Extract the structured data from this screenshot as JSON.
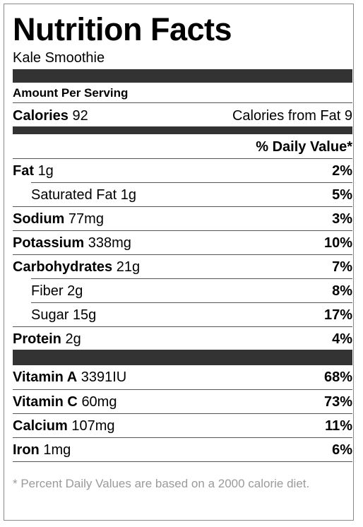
{
  "title": "Nutrition Facts",
  "subtitle": "Kale Smoothie",
  "amount_per_serving": "Amount Per Serving",
  "calories": {
    "label": "Calories",
    "value": "92",
    "from_fat": "Calories from Fat 9"
  },
  "daily_value_header": "% Daily Value*",
  "nutrients": [
    {
      "label": "Fat",
      "amount": "1g",
      "dv": "2%"
    },
    {
      "label": "Saturated Fat",
      "amount": "1g",
      "dv": "5%"
    },
    {
      "label": "Sodium",
      "amount": "77mg",
      "dv": "3%"
    },
    {
      "label": "Potassium",
      "amount": "338mg",
      "dv": "10%"
    },
    {
      "label": "Carbohydrates",
      "amount": "21g",
      "dv": "7%"
    },
    {
      "label": "Fiber",
      "amount": "2g",
      "dv": "8%"
    },
    {
      "label": "Sugar",
      "amount": "15g",
      "dv": "17%"
    },
    {
      "label": "Protein",
      "amount": "2g",
      "dv": "4%"
    }
  ],
  "vitamins": [
    {
      "label": "Vitamin A",
      "amount": "3391IU",
      "dv": "68%"
    },
    {
      "label": "Vitamin C",
      "amount": "60mg",
      "dv": "73%"
    },
    {
      "label": "Calcium",
      "amount": "107mg",
      "dv": "11%"
    },
    {
      "label": "Iron",
      "amount": "1mg",
      "dv": "6%"
    }
  ],
  "footnote": "* Percent Daily Values are based on a 2000 calorie diet."
}
